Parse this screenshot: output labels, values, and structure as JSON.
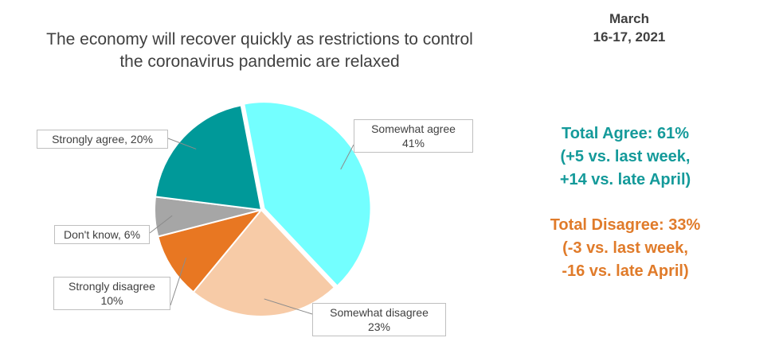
{
  "chart_data": {
    "type": "pie",
    "title_lines": [
      "The economy will recover quickly as restrictions to control",
      "the coronavirus pandemic are relaxed"
    ],
    "slices": [
      {
        "label": "Somewhat agree",
        "value": 41,
        "value_text": "41%",
        "color": "#73ffff"
      },
      {
        "label": "Somewhat disagree",
        "value": 23,
        "value_text": "23%",
        "color": "#f7cba7"
      },
      {
        "label": "Strongly disagree",
        "value": 10,
        "value_text": "10%",
        "color": "#e87722"
      },
      {
        "label": "Don't know",
        "value": 6,
        "value_text": "6%",
        "color": "#a6a6a6"
      },
      {
        "label": "Strongly agree",
        "value": 20,
        "value_text": "20%",
        "color": "#009999"
      }
    ]
  },
  "date": {
    "line1": "March",
    "line2": "16-17, 2021"
  },
  "agree_summary": {
    "line1": "Total Agree: 61%",
    "line2": "(+5 vs. last week,",
    "line3": "+14 vs. late April)",
    "color": "#149a9a"
  },
  "disagree_summary": {
    "line1": "Total Disagree: 33%",
    "line2": "(-3 vs. last week,",
    "line3": "-16 vs. late April)",
    "color": "#e07b2a"
  }
}
